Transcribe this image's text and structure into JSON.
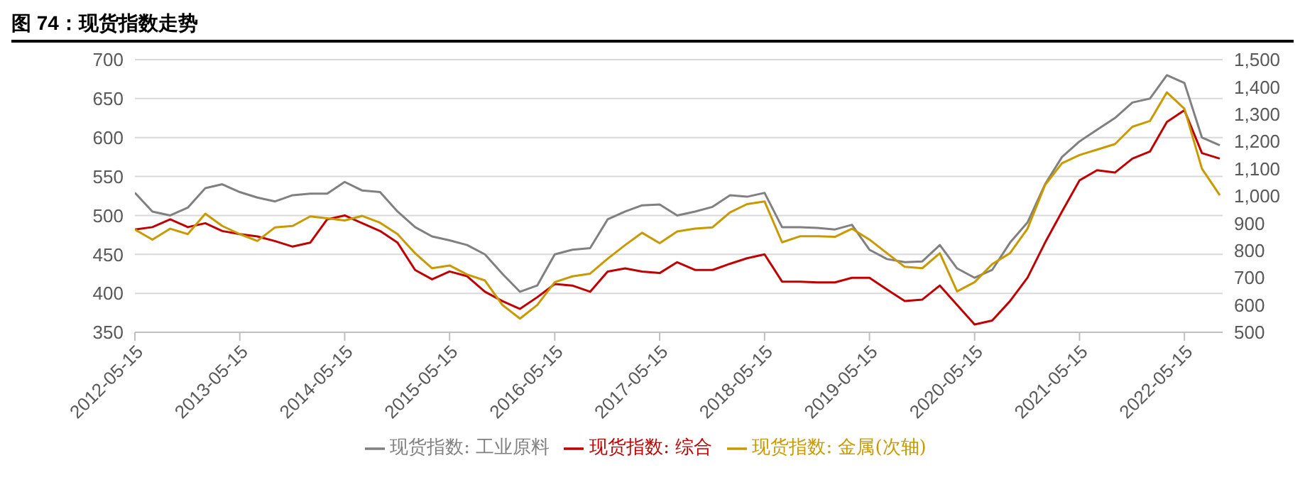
{
  "chart_data": {
    "type": "line",
    "title": "图 74：现货指数走势",
    "x": [
      "2012-05-15",
      "2012-07-15",
      "2012-09-15",
      "2012-11-15",
      "2013-01-15",
      "2013-03-15",
      "2013-05-15",
      "2013-07-15",
      "2013-09-15",
      "2013-11-15",
      "2014-01-15",
      "2014-03-15",
      "2014-05-15",
      "2014-07-15",
      "2014-09-15",
      "2014-11-15",
      "2015-01-15",
      "2015-03-15",
      "2015-05-15",
      "2015-07-15",
      "2015-09-15",
      "2015-11-15",
      "2016-01-15",
      "2016-03-15",
      "2016-05-15",
      "2016-07-15",
      "2016-09-15",
      "2016-11-15",
      "2017-01-15",
      "2017-03-15",
      "2017-05-15",
      "2017-07-15",
      "2017-09-15",
      "2017-11-15",
      "2018-01-15",
      "2018-03-15",
      "2018-05-15",
      "2018-07-15",
      "2018-09-15",
      "2018-11-15",
      "2019-01-15",
      "2019-03-15",
      "2019-05-15",
      "2019-07-15",
      "2019-09-15",
      "2019-11-15",
      "2020-01-15",
      "2020-03-15",
      "2020-05-15",
      "2020-07-15",
      "2020-09-15",
      "2020-11-15",
      "2021-01-15",
      "2021-03-15",
      "2021-05-15",
      "2021-07-15",
      "2021-09-15",
      "2021-11-15",
      "2022-01-15",
      "2022-03-15",
      "2022-05-15",
      "2022-07-15",
      "2022-09-15"
    ],
    "series": [
      {
        "name": "现货指数: 综合",
        "color": "#c00000",
        "values": [
          482,
          485,
          495,
          485,
          490,
          480,
          476,
          473,
          467,
          460,
          465,
          495,
          500,
          490,
          480,
          465,
          430,
          418,
          428,
          422,
          402,
          390,
          380,
          395,
          412,
          410,
          402,
          428,
          432,
          428,
          426,
          440,
          430,
          430,
          438,
          445,
          450,
          415,
          415,
          414,
          414,
          420,
          420,
          405,
          390,
          392,
          410,
          385,
          360,
          365,
          390,
          420,
          465,
          505,
          545,
          558,
          555,
          573,
          582,
          620,
          635,
          580,
          573
        ]
      },
      {
        "name": "现货指数: 工业原料",
        "color": "#808080",
        "values": [
          529,
          505,
          500,
          510,
          535,
          540,
          530,
          523,
          518,
          526,
          528,
          528,
          543,
          532,
          530,
          505,
          485,
          473,
          468,
          462,
          450,
          425,
          402,
          410,
          450,
          456,
          458,
          495,
          505,
          513,
          514,
          500,
          505,
          511,
          526,
          524,
          529,
          485,
          485,
          484,
          482,
          488,
          456,
          444,
          440,
          441,
          462,
          432,
          420,
          430,
          465,
          491,
          540,
          575,
          595,
          610,
          625,
          645,
          650,
          680,
          670,
          600,
          590
        ]
      },
      {
        "name": "现货指数: 金属(次轴)",
        "color": "#c89a00",
        "axis": "y2",
        "values": [
          877,
          840,
          880,
          860,
          935,
          890,
          860,
          835,
          885,
          890,
          925,
          918,
          910,
          927,
          902,
          860,
          790,
          735,
          745,
          712,
          690,
          600,
          550,
          600,
          684,
          705,
          715,
          770,
          820,
          865,
          827,
          870,
          880,
          885,
          940,
          970,
          980,
          830,
          852,
          852,
          850,
          880,
          840,
          790,
          740,
          735,
          790,
          650,
          684,
          750,
          790,
          880,
          1040,
          1120,
          1150,
          1170,
          1190,
          1254,
          1275,
          1380,
          1320,
          1100,
          1003
        ]
      }
    ],
    "xlim": [
      "2012-05-15",
      "2022-09-25"
    ],
    "xticks": [
      "2012-05-15",
      "2013-05-15",
      "2014-05-15",
      "2015-05-15",
      "2016-05-15",
      "2017-05-15",
      "2018-05-15",
      "2019-05-15",
      "2020-05-15",
      "2021-05-15",
      "2022-05-15"
    ],
    "ylim": [
      350,
      700
    ],
    "yticks": [
      350,
      400,
      450,
      500,
      550,
      600,
      650,
      700
    ],
    "y2lim": [
      500,
      1500
    ],
    "y2ticks": [
      500,
      600,
      700,
      800,
      900,
      {
        "value": 1000,
        "label": "1,000"
      },
      {
        "value": 1100,
        "label": "1,100"
      },
      {
        "value": 1200,
        "label": "1,200"
      },
      {
        "value": 1300,
        "label": "1,300"
      },
      {
        "value": 1400,
        "label": "1,400"
      },
      {
        "value": 1500,
        "label": "1,500"
      }
    ],
    "grid": "y",
    "legend": "bottom"
  }
}
